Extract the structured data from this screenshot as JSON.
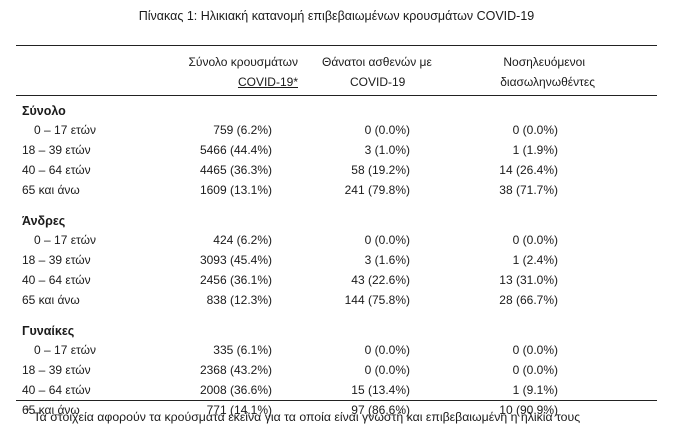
{
  "caption": "Πίνακας 1: Ηλικιακή κατανομή επιβεβαιωμένων κρουσμάτων COVID-19",
  "headers": {
    "col1": [
      "Σύνολο κρουσμάτων",
      "COVID-19*"
    ],
    "col2": [
      "Θάνατοι ασθενών με",
      "COVID-19"
    ],
    "col3": [
      "Νοσηλευόμενοι",
      "διασωληνωθέντες"
    ]
  },
  "groups": [
    {
      "title": "Σύνολο",
      "rows": [
        {
          "age": "0 – 17 ετών",
          "cases": "759 (6.2%)",
          "deaths": "0 (0.0%)",
          "intubated": "0 (0.0%)"
        },
        {
          "age": "18 – 39 ετών",
          "cases": "5466 (44.4%)",
          "deaths": "3 (1.0%)",
          "intubated": "1 (1.9%)"
        },
        {
          "age": "40 – 64 ετών",
          "cases": "4465 (36.3%)",
          "deaths": "58 (19.2%)",
          "intubated": "14 (26.4%)"
        },
        {
          "age": "65 και άνω",
          "cases": "1609 (13.1%)",
          "deaths": "241 (79.8%)",
          "intubated": "38 (71.7%)"
        }
      ]
    },
    {
      "title": "Άνδρες",
      "rows": [
        {
          "age": "0 – 17 ετών",
          "cases": "424 (6.2%)",
          "deaths": "0 (0.0%)",
          "intubated": "0 (0.0%)"
        },
        {
          "age": "18 – 39 ετών",
          "cases": "3093 (45.4%)",
          "deaths": "3 (1.6%)",
          "intubated": "1 (2.4%)"
        },
        {
          "age": "40 – 64 ετών",
          "cases": "2456 (36.1%)",
          "deaths": "43 (22.6%)",
          "intubated": "13 (31.0%)"
        },
        {
          "age": "65 και άνω",
          "cases": "838 (12.3%)",
          "deaths": "144 (75.8%)",
          "intubated": "28 (66.7%)"
        }
      ]
    },
    {
      "title": "Γυναίκες",
      "rows": [
        {
          "age": "0 – 17 ετών",
          "cases": "335 (6.1%)",
          "deaths": "0 (0.0%)",
          "intubated": "0 (0.0%)"
        },
        {
          "age": "18 – 39 ετών",
          "cases": "2368 (43.2%)",
          "deaths": "0 (0.0%)",
          "intubated": "0 (0.0%)"
        },
        {
          "age": "40 – 64 ετών",
          "cases": "2008 (36.6%)",
          "deaths": "15 (13.4%)",
          "intubated": "1 (9.1%)"
        },
        {
          "age": "65 και άνω",
          "cases": "771 (14.1%)",
          "deaths": "97 (86.6%)",
          "intubated": "10 (90.9%)"
        }
      ]
    }
  ],
  "footnote": {
    "marker": "*",
    "text": "Τα στοιχεία αφορούν τα κρούσματα εκείνα για τα οποία είναι γνωστή και επιβεβαιωμένη η ηλικία τους"
  }
}
